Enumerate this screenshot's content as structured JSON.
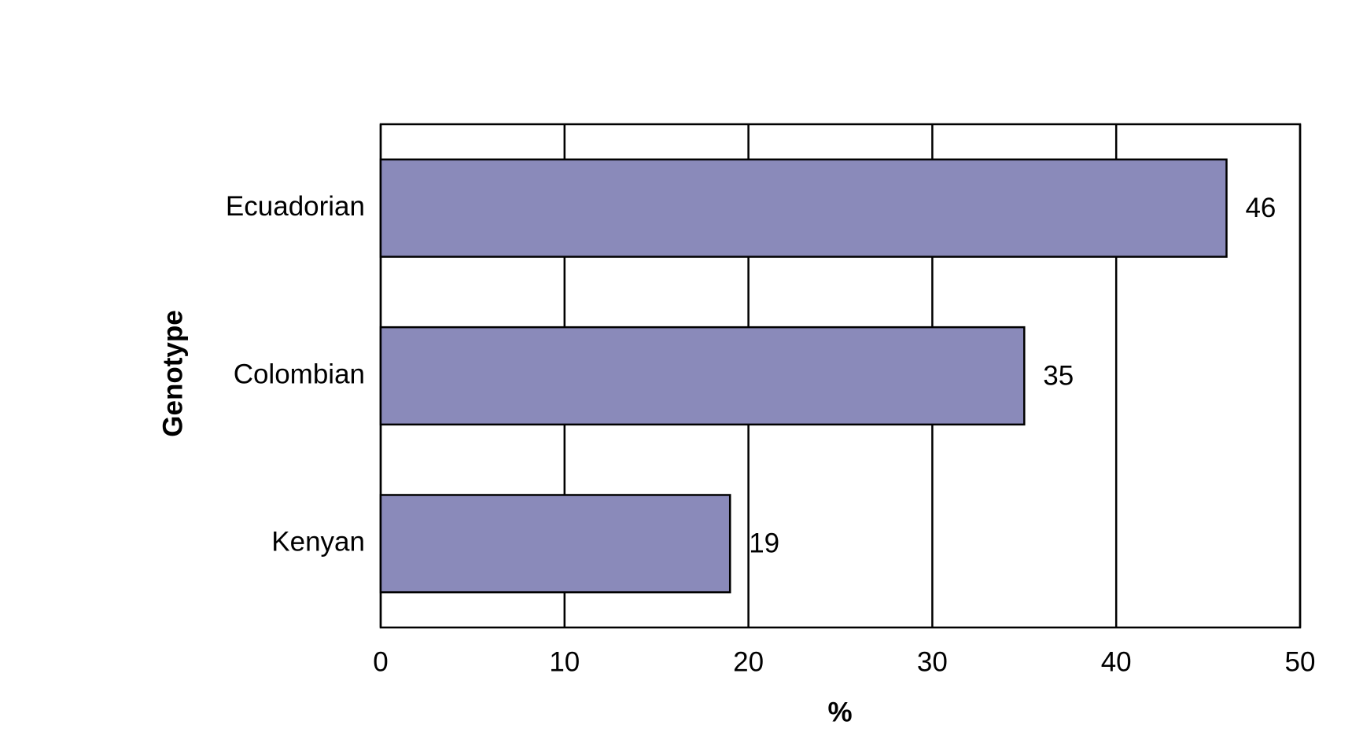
{
  "chart_data": {
    "type": "hbar",
    "categories": [
      "Ecuadorian",
      "Colombian",
      "Kenyan"
    ],
    "values": [
      46,
      35,
      19
    ],
    "color": "#8a8aba",
    "xlim": [
      0,
      50
    ],
    "xticks": [
      0,
      10,
      20,
      30,
      40,
      50
    ],
    "x_label": "%",
    "y_label": "Genotype",
    "grid": true
  }
}
